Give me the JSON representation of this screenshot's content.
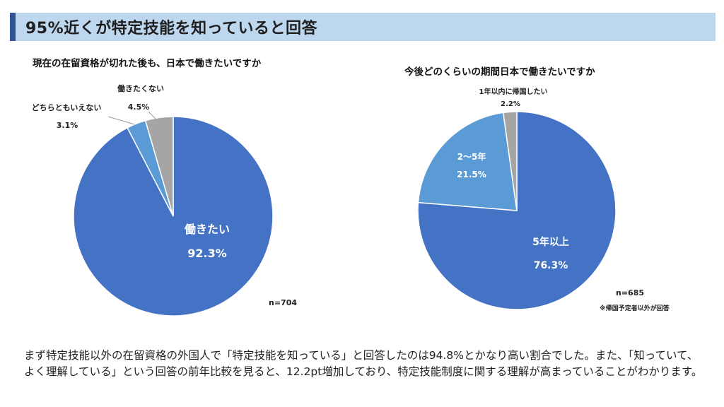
{
  "header": {
    "title": "95%近くが特定技能を知っていると回答"
  },
  "colors": {
    "accent": "#2f5597",
    "header_bg": "#bdd7ee",
    "blue": "#4472c4",
    "light_blue": "#5b9bd5",
    "gray": "#a5a5a5"
  },
  "chart_data": [
    {
      "type": "pie",
      "title": "現在の在留資格が切れた後も、日本で働きたいですか",
      "slices": [
        {
          "label": "働きたい",
          "value": 92.3,
          "value_label": "92.3%",
          "color": "#4472c4"
        },
        {
          "label": "どちらともいえない",
          "value": 3.1,
          "value_label": "3.1%",
          "color": "#5b9bd5"
        },
        {
          "label": "働きたくない",
          "value": 4.5,
          "value_label": "4.5%",
          "color": "#a5a5a5"
        }
      ],
      "n_label": "n=704",
      "note": ""
    },
    {
      "type": "pie",
      "title": "今後どのくらいの期間日本で働きたいですか",
      "slices": [
        {
          "label": "5年以上",
          "value": 76.3,
          "value_label": "76.3%",
          "color": "#4472c4"
        },
        {
          "label": "2～5年",
          "value": 21.5,
          "value_label": "21.5%",
          "color": "#5b9bd5"
        },
        {
          "label": "1年以内に帰国したい",
          "value": 2.2,
          "value_label": "2.2%",
          "color": "#a5a5a5"
        }
      ],
      "n_label": "n=685",
      "note": "※帰国予定者以外が回答"
    }
  ],
  "caption": "まず特定技能以外の在留資格の外国人で「特定技能を知っている」と回答したのは94.8%とかなり高い割合でした。また、「知っていて、よく理解している」という回答の前年比較を見ると、12.2pt増加しており、特定技能制度に関する理解が高まっていることがわかります。"
}
